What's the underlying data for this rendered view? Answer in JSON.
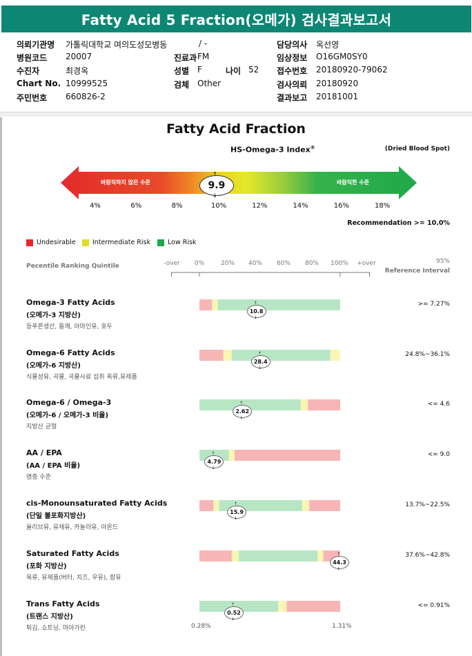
{
  "header": {
    "title": "Fatty Acid 5 Fraction(오메가) 검사결과보고서"
  },
  "patient": {
    "col1": [
      {
        "label": "의뢰기관명",
        "value": "가톨릭대학교 여의도성모병동"
      },
      {
        "label": "병원코드",
        "value": "20007"
      },
      {
        "label": "수진자",
        "value": "최경옥"
      },
      {
        "label": "Chart No.",
        "value": "10999525"
      },
      {
        "label": "주민번호",
        "value": "660826-2"
      }
    ],
    "col2": [
      {
        "label": "",
        "value": "/ -"
      },
      {
        "label": "진료과",
        "value": "FM"
      },
      {
        "label": "성별",
        "value": "F"
      },
      {
        "label": "검체",
        "value": "Other"
      }
    ],
    "age": {
      "label": "나이",
      "value": "52"
    },
    "col3": [
      {
        "label": "담당의사",
        "value": "옥선영"
      },
      {
        "label": "임상정보",
        "value": "O16GM0SY0"
      },
      {
        "label": "접수번호",
        "value": "20180920-79062"
      },
      {
        "label": "검사의뢰",
        "value": "20180920"
      },
      {
        "label": "결과보고",
        "value": "20181001"
      }
    ]
  },
  "report": {
    "section_title": "Fatty Acid Fraction",
    "index_title": "HS-Omega-3 Index",
    "index_sup": "®",
    "specimen": "(Dried Blood Spot)",
    "undesirable_label": "바람직하지 않은 수준",
    "desirable_label": "바람직한 수준",
    "score": "9.9",
    "score_value": 9.9,
    "scale_ticks": [
      "4%",
      "6%",
      "8%",
      "10%",
      "12%",
      "14%",
      "16%",
      "18%"
    ],
    "recommendation": "Recommendation  >= 10.0%",
    "legend": [
      {
        "label": "Undesirable",
        "color": "#e8282b"
      },
      {
        "label": "Intermediate Risk",
        "color": "#dede2a"
      },
      {
        "label": "Low Risk",
        "color": "#1ea84a"
      }
    ],
    "percentile_label": "Pecentile Ranking Quintile",
    "percentile_ticks": [
      "-over",
      "0%",
      "20%",
      "40%",
      "60%",
      "80%",
      "100%",
      "+over"
    ],
    "ref_header_1": "95%",
    "ref_header_2": "Reference Interval",
    "colors": {
      "red": "#f7b5b5",
      "yellow": "#f9f6b3",
      "green": "#b8e6c5",
      "teal": "#0e8674"
    }
  },
  "rows": [
    {
      "name": "Omega-3 Fatty Acids",
      "kor": "(오메가-3 지방산)",
      "food": "등푸른생선, 들깨, 아마인유, 호두",
      "value": "10.8",
      "pos": 0.4,
      "ref": ">= 7.27%",
      "segs": [
        [
          "red",
          0,
          0.09
        ],
        [
          "yellow",
          0.09,
          0.13
        ],
        [
          "green",
          0.13,
          1
        ]
      ]
    },
    {
      "name": "Omega-6 Fatty Acids",
      "kor": "(오메가-6 지방산)",
      "food": "식물성유, 곡물, 곡물사료 섭취 육류,유제품",
      "value": "28.4",
      "pos": 0.43,
      "ref": "24.8%~36.1%",
      "segs": [
        [
          "red",
          0,
          0.17
        ],
        [
          "yellow",
          0.17,
          0.23
        ],
        [
          "green",
          0.23,
          0.93
        ],
        [
          "yellow",
          0.93,
          1
        ]
      ]
    },
    {
      "name": "Omega-6 / Omega-3",
      "kor": "(오메가-6 / 오메가-3 비율)",
      "food": "지방산 균형",
      "value": "2.62",
      "pos": 0.3,
      "ref": "<= 4.6",
      "segs": [
        [
          "green",
          0,
          0.72
        ],
        [
          "yellow",
          0.72,
          0.77
        ],
        [
          "red",
          0.77,
          1
        ]
      ]
    },
    {
      "name": "AA / EPA",
      "kor": "(AA / EPA 비율)",
      "food": "염증 수준",
      "value": "4.79",
      "pos": 0.1,
      "ref": "<= 9.0",
      "segs": [
        [
          "green",
          0,
          0.21
        ],
        [
          "yellow",
          0.21,
          0.25
        ],
        [
          "red",
          0.25,
          1
        ]
      ]
    },
    {
      "name": "cis-Monounsaturated Fatty Acids",
      "kor": "(단일 불포화지방산)",
      "food": "올리브유, 유채유, 카놀라유, 아몬드",
      "value": "15.9",
      "pos": 0.26,
      "ref": "13.7%~22.5%",
      "segs": [
        [
          "red",
          0,
          0.1
        ],
        [
          "yellow",
          0.1,
          0.14
        ],
        [
          "green",
          0.14,
          0.73
        ],
        [
          "yellow",
          0.73,
          0.78
        ],
        [
          "red",
          0.78,
          1
        ]
      ]
    },
    {
      "name": "Saturated Fatty Acids",
      "kor": "(포화 지방산)",
      "food": "육류, 유제품(버터, 치즈, 우유), 팜유",
      "value": "44.3",
      "pos": 0.99,
      "ref": "37.6%~42.8%",
      "segs": [
        [
          "red",
          0,
          0.23
        ],
        [
          "yellow",
          0.23,
          0.28
        ],
        [
          "green",
          0.28,
          0.84
        ],
        [
          "yellow",
          0.84,
          0.88
        ],
        [
          "red",
          0.88,
          1
        ]
      ]
    },
    {
      "name": "Trans Fatty Acids",
      "kor": "(트랜스 지방산)",
      "food": "튀김, 쇼트닝, 마아가린",
      "value": "0.52",
      "pos": 0.24,
      "ref": "<= 0.91%",
      "segs": [
        [
          "green",
          0,
          0.56
        ],
        [
          "yellow",
          0.56,
          0.62
        ],
        [
          "red",
          0.62,
          1
        ]
      ],
      "min": "0.28%",
      "max": "1.31%"
    }
  ]
}
